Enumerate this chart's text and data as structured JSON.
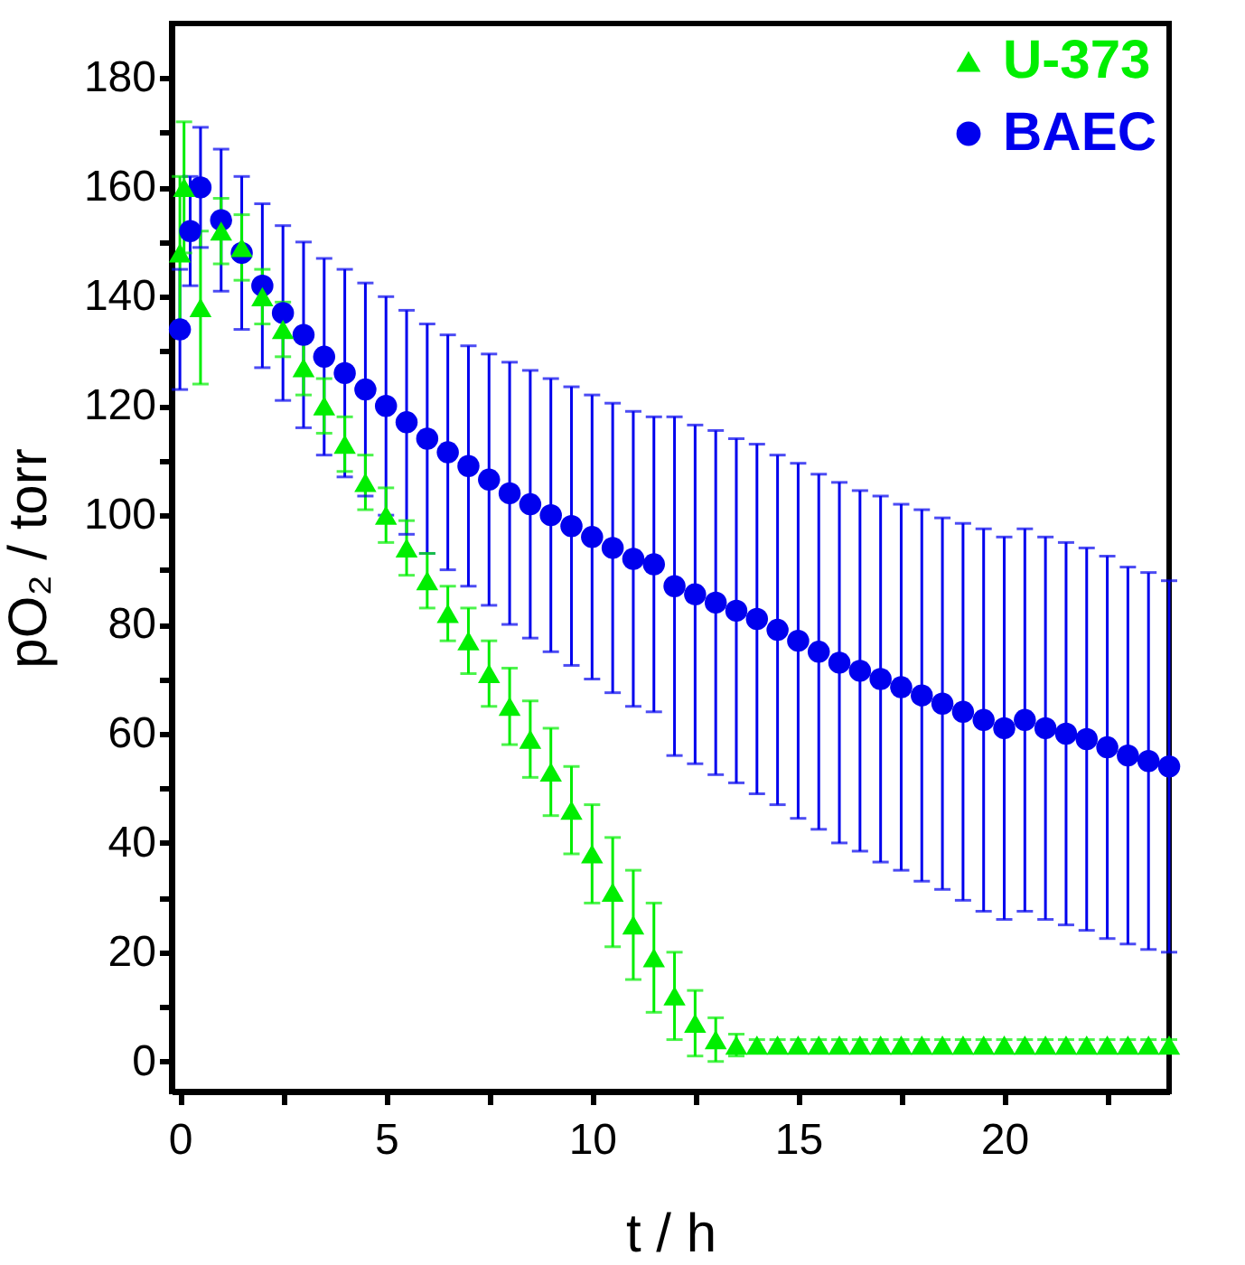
{
  "chart_data": {
    "type": "scatter",
    "xlabel": "t / h",
    "ylabel": "pO₂ / torr",
    "xlim": [
      -0.2,
      24
    ],
    "ylim": [
      -5.5,
      190
    ],
    "xticks": [
      0,
      {
        "value": 2.5,
        "label": null
      },
      5,
      {
        "value": 7.5,
        "label": null
      },
      10,
      {
        "value": 12.5,
        "label": null
      },
      15,
      {
        "value": 17.5,
        "label": null
      },
      20,
      {
        "value": 22.5,
        "label": null
      }
    ],
    "yticks": [
      0,
      {
        "value": 10,
        "label": null
      },
      20,
      {
        "value": 30,
        "label": null
      },
      40,
      {
        "value": 50,
        "label": null
      },
      60,
      {
        "value": 70,
        "label": null
      },
      80,
      {
        "value": 90,
        "label": null
      },
      100,
      {
        "value": 110,
        "label": null
      },
      120,
      {
        "value": 130,
        "label": null
      },
      140,
      {
        "value": 150,
        "label": null
      },
      160,
      {
        "value": 170,
        "label": null
      },
      180
    ],
    "grid": false,
    "legend": "top right",
    "series": [
      {
        "name": "U-373",
        "color": "#00ee00",
        "marker": "triangle",
        "x": [
          0,
          0.1,
          0.5,
          1,
          1.5,
          2,
          2.5,
          3,
          3.5,
          4,
          4.5,
          5,
          5.5,
          6,
          6.5,
          7,
          7.5,
          8,
          8.5,
          9,
          9.5,
          10,
          10.5,
          11,
          11.5,
          12,
          12.5,
          13,
          13.5,
          14,
          14.5,
          15,
          15.5,
          16,
          16.5,
          17,
          17.5,
          18,
          18.5,
          19,
          19.5,
          20,
          20.5,
          21,
          21.5,
          22,
          22.5,
          23,
          23.5,
          24
        ],
        "values": [
          148,
          160,
          138,
          152,
          149,
          140,
          134,
          127,
          120,
          113,
          106,
          100,
          94,
          88,
          82,
          77,
          71,
          65,
          59,
          53,
          46,
          38,
          31,
          25,
          19,
          12,
          7,
          4,
          3,
          3,
          3,
          3,
          3,
          3,
          3,
          3,
          3,
          3,
          3,
          3,
          3,
          3,
          3,
          3,
          3,
          3,
          3,
          3,
          3,
          3
        ],
        "errors": [
          14,
          12,
          14,
          6,
          6,
          5,
          5,
          5,
          5,
          5,
          5,
          5,
          5,
          5,
          5,
          6,
          6,
          7,
          7,
          8,
          8,
          9,
          10,
          10,
          10,
          8,
          6,
          4,
          2,
          1,
          1,
          1,
          1,
          1,
          1,
          1,
          1,
          1,
          1,
          1,
          1,
          1,
          1,
          1,
          1,
          1,
          1,
          1,
          1,
          1
        ]
      },
      {
        "name": "BAEC",
        "color": "#0000ee",
        "marker": "circle",
        "x": [
          0,
          0.25,
          0.5,
          1,
          1.5,
          2,
          2.5,
          3,
          3.5,
          4,
          4.5,
          5,
          5.5,
          6,
          6.5,
          7,
          7.5,
          8,
          8.5,
          9,
          9.5,
          10,
          10.5,
          11,
          11.5,
          12,
          12.5,
          13,
          13.5,
          14,
          14.5,
          15,
          15.5,
          16,
          16.5,
          17,
          17.5,
          18,
          18.5,
          19,
          19.5,
          20,
          20.5,
          21,
          21.5,
          22,
          22.5,
          23,
          23.5,
          24
        ],
        "values": [
          134,
          152,
          160,
          154,
          148,
          142,
          137,
          133,
          129,
          126,
          123,
          120,
          117,
          114,
          111.5,
          109,
          106.5,
          104,
          102,
          100,
          98,
          96,
          94,
          92,
          91,
          87,
          85.5,
          84,
          82.5,
          81,
          79,
          77,
          75,
          73,
          71.5,
          70,
          68.5,
          67,
          65.5,
          64,
          62.5,
          61,
          62.5,
          61,
          60,
          59,
          57.5,
          56,
          55,
          54
        ],
        "errors": [
          11,
          10,
          11,
          13,
          14,
          15,
          16,
          17,
          18,
          19,
          19.5,
          20,
          20.5,
          21,
          21.5,
          22,
          23,
          24,
          24.5,
          25,
          25.5,
          26,
          26.5,
          27,
          27,
          31,
          31,
          31.5,
          31.5,
          32,
          32,
          32.5,
          32.5,
          33,
          33,
          33.5,
          33.5,
          34,
          34,
          34.5,
          35,
          35,
          35,
          35,
          35,
          35,
          35,
          34.5,
          34.5,
          34
        ]
      }
    ]
  }
}
